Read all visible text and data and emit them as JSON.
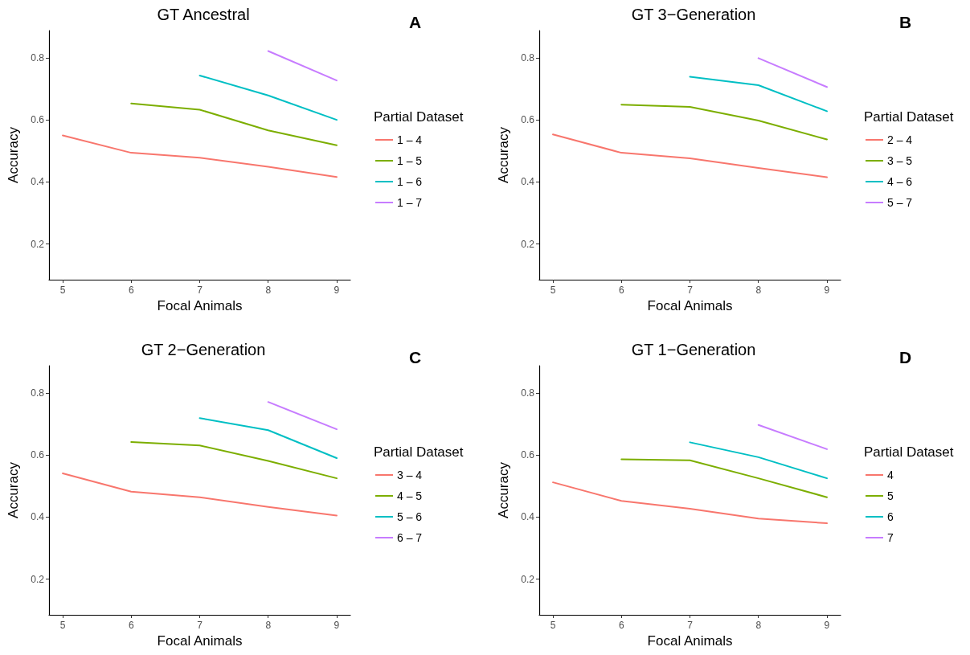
{
  "chart_data": [
    {
      "type": "line",
      "title": "GT Ancestral",
      "xlabel": "Focal Animals",
      "ylabel": "Accuracy",
      "legend_title": "Partial Dataset",
      "annotations": [
        "A"
      ],
      "x": [
        5,
        6,
        7,
        8,
        9
      ],
      "xlim": [
        4.8,
        9.2
      ],
      "xticks": [
        5,
        6,
        7,
        8,
        9
      ],
      "ylim": [
        0.085,
        0.888
      ],
      "yticks": [
        0.2,
        0.4,
        0.6,
        0.8
      ],
      "grid": false,
      "legend": "right",
      "marker": "none",
      "line_style": "solid",
      "series": [
        {
          "name": "1 – 4",
          "color": "#f8766d",
          "values": [
            0.55,
            0.494,
            0.478,
            0.449,
            0.416
          ]
        },
        {
          "name": "1 – 5",
          "color": "#7cae00",
          "values": [
            null,
            0.653,
            0.633,
            0.566,
            0.518
          ]
        },
        {
          "name": "1 – 6",
          "color": "#00bfc4",
          "values": [
            null,
            null,
            0.743,
            0.679,
            0.6
          ]
        },
        {
          "name": "1 – 7",
          "color": "#c77cff",
          "values": [
            null,
            null,
            null,
            0.822,
            0.727
          ]
        }
      ]
    },
    {
      "type": "line",
      "title": "GT 3−Generation",
      "xlabel": "Focal Animals",
      "ylabel": "Accuracy",
      "legend_title": "Partial Dataset",
      "annotations": [
        "B"
      ],
      "x": [
        5,
        6,
        7,
        8,
        9
      ],
      "xlim": [
        4.8,
        9.2
      ],
      "xticks": [
        5,
        6,
        7,
        8,
        9
      ],
      "ylim": [
        0.085,
        0.888
      ],
      "yticks": [
        0.2,
        0.4,
        0.6,
        0.8
      ],
      "grid": false,
      "legend": "right",
      "marker": "none",
      "line_style": "solid",
      "series": [
        {
          "name": "2 – 4",
          "color": "#f8766d",
          "values": [
            0.553,
            0.494,
            0.476,
            0.445,
            0.415
          ]
        },
        {
          "name": "3 – 5",
          "color": "#7cae00",
          "values": [
            null,
            0.649,
            0.642,
            0.598,
            0.537
          ]
        },
        {
          "name": "4 – 6",
          "color": "#00bfc4",
          "values": [
            null,
            null,
            0.739,
            0.712,
            0.628
          ]
        },
        {
          "name": "5 – 7",
          "color": "#c77cff",
          "values": [
            null,
            null,
            null,
            0.799,
            0.706
          ]
        }
      ]
    },
    {
      "type": "line",
      "title": "GT 2−Generation",
      "xlabel": "Focal Animals",
      "ylabel": "Accuracy",
      "legend_title": "Partial Dataset",
      "annotations": [
        "C"
      ],
      "x": [
        5,
        6,
        7,
        8,
        9
      ],
      "xlim": [
        4.8,
        9.2
      ],
      "xticks": [
        5,
        6,
        7,
        8,
        9
      ],
      "ylim": [
        0.085,
        0.888
      ],
      "yticks": [
        0.2,
        0.4,
        0.6,
        0.8
      ],
      "grid": false,
      "legend": "right",
      "marker": "none",
      "line_style": "solid",
      "series": [
        {
          "name": "3 – 4",
          "color": "#f8766d",
          "values": [
            0.541,
            0.482,
            0.464,
            0.433,
            0.405
          ]
        },
        {
          "name": "4 – 5",
          "color": "#7cae00",
          "values": [
            null,
            0.642,
            0.631,
            0.581,
            0.525
          ]
        },
        {
          "name": "5 – 6",
          "color": "#00bfc4",
          "values": [
            null,
            null,
            0.719,
            0.68,
            0.59
          ]
        },
        {
          "name": "6 – 7",
          "color": "#c77cff",
          "values": [
            null,
            null,
            null,
            0.771,
            0.683
          ]
        }
      ]
    },
    {
      "type": "line",
      "title": "GT 1−Generation",
      "xlabel": "Focal Animals",
      "ylabel": "Accuracy",
      "legend_title": "Partial Dataset",
      "annotations": [
        "D"
      ],
      "x": [
        5,
        6,
        7,
        8,
        9
      ],
      "xlim": [
        4.8,
        9.2
      ],
      "xticks": [
        5,
        6,
        7,
        8,
        9
      ],
      "ylim": [
        0.085,
        0.888
      ],
      "yticks": [
        0.2,
        0.4,
        0.6,
        0.8
      ],
      "grid": false,
      "legend": "right",
      "marker": "none",
      "line_style": "solid",
      "series": [
        {
          "name": "4",
          "color": "#f8766d",
          "values": [
            0.512,
            0.452,
            0.427,
            0.395,
            0.38
          ]
        },
        {
          "name": "5",
          "color": "#7cae00",
          "values": [
            null,
            0.586,
            0.583,
            0.525,
            0.464
          ]
        },
        {
          "name": "6",
          "color": "#00bfc4",
          "values": [
            null,
            null,
            0.641,
            0.593,
            0.525
          ]
        },
        {
          "name": "7",
          "color": "#c77cff",
          "values": [
            null,
            null,
            null,
            0.697,
            0.619
          ]
        }
      ]
    }
  ]
}
